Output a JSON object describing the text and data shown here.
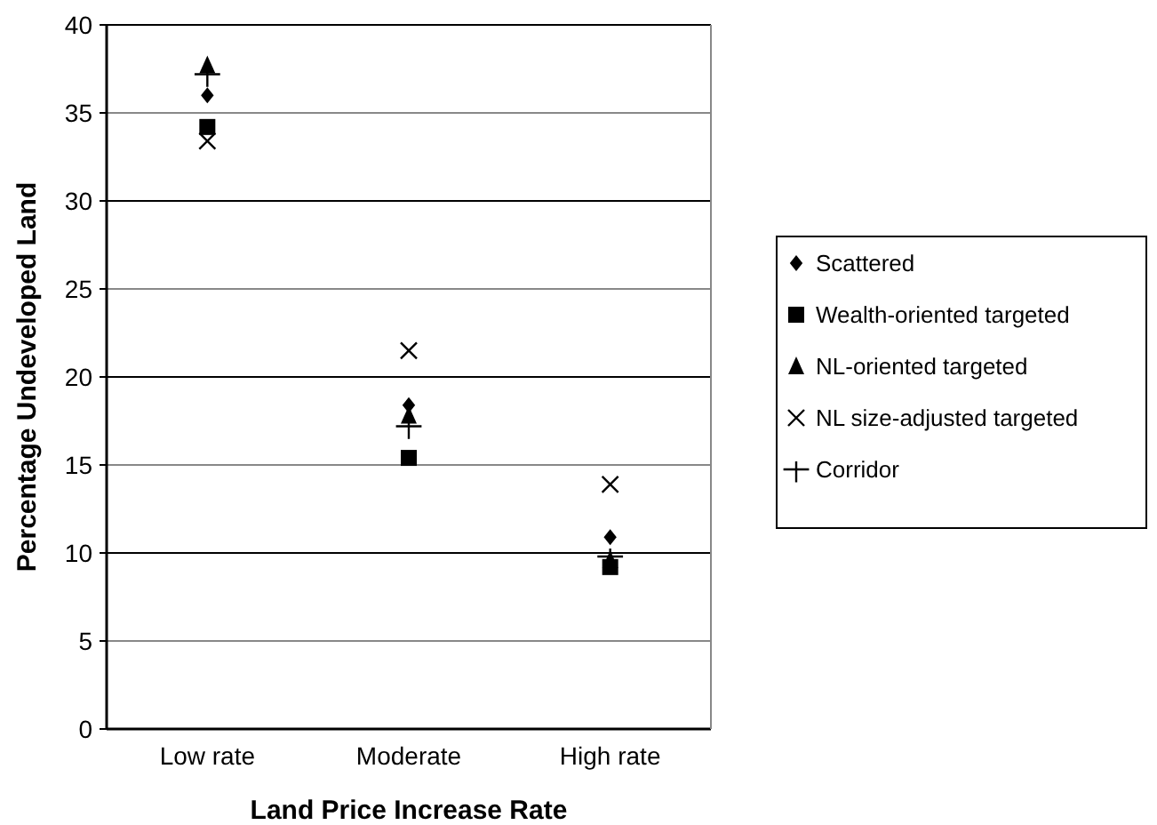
{
  "chart_data": {
    "type": "scatter",
    "xlabel": "Land Price Increase Rate",
    "ylabel": "Percentage Undeveloped Land",
    "categories": [
      "Low rate",
      "Moderate",
      "High rate"
    ],
    "ylim": [
      0,
      40
    ],
    "yticks": [
      0,
      5,
      10,
      15,
      20,
      25,
      30,
      35,
      40
    ],
    "grid": "y",
    "legend": "right",
    "series": [
      {
        "name": "Scattered",
        "color": "#000000",
        "marker": "diamond",
        "values": [
          36.0,
          18.4,
          10.9
        ]
      },
      {
        "name": "Wealth-oriented targeted",
        "color": "#000000",
        "marker": "square",
        "values": [
          34.2,
          15.4,
          9.2
        ]
      },
      {
        "name": "NL-oriented targeted",
        "color": "#000000",
        "marker": "triangle",
        "values": [
          37.7,
          17.8,
          9.6
        ]
      },
      {
        "name": "NL size-adjusted targeted",
        "color": "#000000",
        "marker": "cross",
        "values": [
          33.4,
          21.5,
          13.9
        ]
      },
      {
        "name": "Corridor",
        "color": "#000000",
        "marker": "plus",
        "values": [
          37.2,
          17.2,
          9.8
        ]
      }
    ]
  }
}
